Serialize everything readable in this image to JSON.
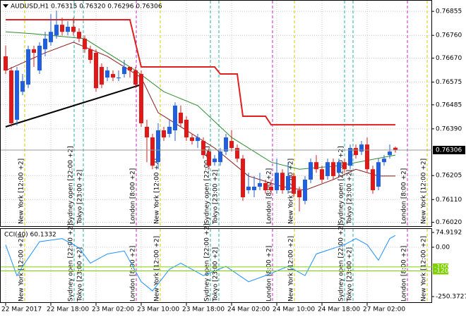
{
  "chart_data": [
    {
      "type": "candlestick",
      "title": "AUDUSD,H1 0.76315 0.76320 0.76296 0.76306",
      "categories": [
        "22 Mar 2017",
        null,
        null,
        null,
        null,
        null,
        null,
        null,
        "22 Mar 18:00",
        null,
        null,
        null,
        null,
        null,
        null,
        null,
        "23 Mar 02:00",
        null,
        null,
        null,
        null,
        null,
        null,
        null,
        "23 Mar 10:00",
        null,
        null,
        null,
        null,
        null,
        null,
        null,
        "23 Mar 18:00",
        null,
        null,
        null,
        null,
        null,
        null,
        null,
        "24 Mar 02:00",
        null,
        null,
        null,
        null,
        null,
        null,
        null,
        "24 Mar 10:00",
        null,
        null,
        null,
        null,
        null,
        null,
        null,
        "24 Mar 18:00",
        null,
        null,
        null,
        null,
        null,
        null,
        null,
        "27 Mar 02:00",
        null,
        null,
        null,
        null,
        null
      ],
      "ohlc": [
        [
          0.76677,
          0.76719,
          0.76607,
          0.76621
        ],
        [
          0.76621,
          0.76635,
          0.76398,
          0.76412
        ],
        [
          0.76426,
          0.76635,
          0.76403,
          0.76621
        ],
        [
          0.76537,
          0.76607,
          0.76523,
          0.76579
        ],
        [
          0.76565,
          0.76719,
          0.76551,
          0.76705
        ],
        [
          0.76705,
          0.76719,
          0.76635,
          0.76691
        ],
        [
          0.76621,
          0.76733,
          0.76607,
          0.76719
        ],
        [
          0.76705,
          0.76774,
          0.76677,
          0.76747
        ],
        [
          0.76733,
          0.76844,
          0.76719,
          0.76774
        ],
        [
          0.7676,
          0.76858,
          0.76747,
          0.76802
        ],
        [
          0.76802,
          0.7683,
          0.7676,
          0.76774
        ],
        [
          0.76774,
          0.76816,
          0.7676,
          0.76794
        ],
        [
          0.76794,
          0.7683,
          0.7676,
          0.76774
        ],
        [
          0.76774,
          0.76788,
          0.76733,
          0.76747
        ],
        [
          0.76747,
          0.7676,
          0.76691,
          0.76705
        ],
        [
          0.76705,
          0.76719,
          0.76649,
          0.76663
        ],
        [
          0.76691,
          0.76705,
          0.76537,
          0.76551
        ],
        [
          0.76635,
          0.76649,
          0.76551,
          0.76565
        ],
        [
          0.76593,
          0.76635,
          0.76579,
          0.76621
        ],
        [
          0.76607,
          0.76621,
          0.76579,
          0.76593
        ],
        [
          0.76593,
          0.76621,
          0.76579,
          0.76593
        ],
        [
          0.76607,
          0.76663,
          0.76593,
          0.76635
        ],
        [
          0.76635,
          0.76635,
          0.76593,
          0.76621
        ],
        [
          0.76621,
          0.76635,
          0.76551,
          0.76565
        ],
        [
          0.76607,
          0.76621,
          0.76398,
          0.76412
        ],
        [
          0.76398,
          0.76426,
          0.76258,
          0.76356
        ],
        [
          0.76356,
          0.7637,
          0.7623,
          0.76244
        ],
        [
          0.76258,
          0.76412,
          0.7623,
          0.76384
        ],
        [
          0.76384,
          0.76398,
          0.76342,
          0.76356
        ],
        [
          0.7637,
          0.76426,
          0.76356,
          0.76398
        ],
        [
          0.76384,
          0.76495,
          0.76342,
          0.76482
        ],
        [
          0.76454,
          0.76482,
          0.76398,
          0.76412
        ],
        [
          0.76426,
          0.7644,
          0.76342,
          0.76356
        ],
        [
          0.76356,
          0.7637,
          0.76328,
          0.76342
        ],
        [
          0.76342,
          0.7637,
          0.76314,
          0.76356
        ],
        [
          0.76342,
          0.76356,
          0.76272,
          0.76286
        ],
        [
          0.763,
          0.76314,
          0.7623,
          0.76244
        ],
        [
          0.76258,
          0.76286,
          0.76244,
          0.76272
        ],
        [
          0.76258,
          0.76314,
          0.76244,
          0.763
        ],
        [
          0.763,
          0.7637,
          0.76286,
          0.76356
        ],
        [
          0.76342,
          0.76384,
          0.763,
          0.76314
        ],
        [
          0.76314,
          0.76328,
          0.76258,
          0.76272
        ],
        [
          0.76272,
          0.76286,
          0.76105,
          0.76119
        ],
        [
          0.76147,
          0.76216,
          0.76133,
          0.76161
        ],
        [
          0.76147,
          0.76203,
          0.76119,
          0.76161
        ],
        [
          0.76161,
          0.76216,
          0.76147,
          0.76175
        ],
        [
          0.76175,
          0.76189,
          0.76133,
          0.76147
        ],
        [
          0.76161,
          0.76189,
          0.76133,
          0.76147
        ],
        [
          0.76147,
          0.76272,
          0.76133,
          0.76216
        ],
        [
          0.76216,
          0.7623,
          0.76133,
          0.76147
        ],
        [
          0.76147,
          0.76258,
          0.76133,
          0.76203
        ],
        [
          0.76203,
          0.76216,
          0.76119,
          0.76133
        ],
        [
          0.76147,
          0.76161,
          0.76063,
          0.76119
        ],
        [
          0.76105,
          0.76203,
          0.76091,
          0.76189
        ],
        [
          0.76189,
          0.76272,
          0.76175,
          0.76258
        ],
        [
          0.76258,
          0.76286,
          0.76216,
          0.7623
        ],
        [
          0.7623,
          0.76244,
          0.76175,
          0.76189
        ],
        [
          0.76203,
          0.76272,
          0.76189,
          0.76258
        ],
        [
          0.76258,
          0.76272,
          0.76189,
          0.76203
        ],
        [
          0.76216,
          0.76272,
          0.76203,
          0.76258
        ],
        [
          0.76258,
          0.76272,
          0.76216,
          0.7623
        ],
        [
          0.76244,
          0.76328,
          0.7623,
          0.76314
        ],
        [
          0.76314,
          0.76328,
          0.76272,
          0.76286
        ],
        [
          0.763,
          0.76342,
          0.76286,
          0.76328
        ],
        [
          0.76328,
          0.76356,
          0.76216,
          0.7623
        ],
        [
          0.7623,
          0.76244,
          0.76133,
          0.76147
        ],
        [
          0.76161,
          0.76272,
          0.76147,
          0.76258
        ],
        [
          0.76258,
          0.76286,
          0.76244,
          0.76272
        ],
        [
          0.76286,
          0.76328,
          0.76272,
          0.763
        ],
        [
          0.76315,
          0.7632,
          0.76296,
          0.76306
        ]
      ],
      "up_color": "#1f5fe0",
      "down_color": "#e01818",
      "ylim": [
        0.76002,
        0.769
      ],
      "yticks": [
        0.76855,
        {
          "value": 0.7676,
          "label": "0.76760"
        },
        {
          "value": 0.7667,
          "label": "0.76670"
        },
        0.76575,
        0.76485,
        {
          "value": 0.7639,
          "label": "0.76390"
        },
        0.76205,
        {
          "value": 0.7611,
          "label": "0.76110"
        },
        {
          "value": 0.7602,
          "label": "0.76020"
        }
      ],
      "grid": true,
      "current_price": 0.76306,
      "series": [
        {
          "color": "#e02020",
          "x": [
            0,
            22,
            24,
            37,
            38,
            41,
            42,
            46,
            47,
            69
          ],
          "values": [
            0.76822,
            0.76822,
            0.76635,
            0.76635,
            0.76607,
            0.76607,
            0.7644,
            0.7644,
            0.76406,
            0.76406
          ]
        },
        {
          "color": "#2e8b2e",
          "x": [
            0,
            5,
            14,
            23,
            28,
            34,
            40,
            47,
            52,
            59,
            69
          ],
          "values": [
            0.76774,
            0.76766,
            0.76747,
            0.76621,
            0.76537,
            0.76482,
            0.76356,
            0.76258,
            0.7623,
            0.76244,
            0.76286
          ]
        },
        {
          "color": "#8b1a1a",
          "x": [
            0,
            7,
            12,
            18,
            24,
            27,
            32,
            37,
            43,
            49,
            53,
            58,
            62,
            66,
            69
          ],
          "values": [
            0.76621,
            0.76691,
            0.76733,
            0.76677,
            0.76593,
            0.76454,
            0.76384,
            0.76314,
            0.76203,
            0.76161,
            0.76147,
            0.76189,
            0.7623,
            0.76203,
            0.76203
          ]
        },
        {
          "color": "#000000",
          "x": [
            0,
            24
          ],
          "values": [
            0.76398,
            0.76565
          ]
        }
      ],
      "sessions": [
        "New York [12:00 +2]",
        "Sydney open [22:00 +2]",
        "Tokyo [23:00 +2]",
        "London [8:00 +2]"
      ]
    },
    {
      "type": "line",
      "title": "CCI(40) 60.1332",
      "color": "#1e90ff",
      "x": [
        0,
        2,
        3,
        6,
        10,
        13,
        15,
        18,
        21,
        24,
        26,
        29,
        31,
        35,
        39,
        43,
        46,
        50,
        53,
        55,
        60,
        62,
        64,
        66,
        68,
        69
      ],
      "values": [
        12,
        -145,
        -97,
        28,
        44,
        -3,
        -81,
        -34,
        -19,
        -175,
        -222,
        -112,
        -81,
        -144,
        -97,
        -175,
        -144,
        -97,
        -144,
        -34,
        13,
        44,
        13,
        -66,
        44,
        60.1332
      ],
      "ylim": [
        -250.3727,
        74.9192
      ],
      "yticks": [
        74.9192,
        {
          "value": 0,
          "label": "0.00"
        },
        -250.3727
      ],
      "levels": [
        -100,
        -120
      ],
      "level_color": "#7fd000"
    }
  ]
}
